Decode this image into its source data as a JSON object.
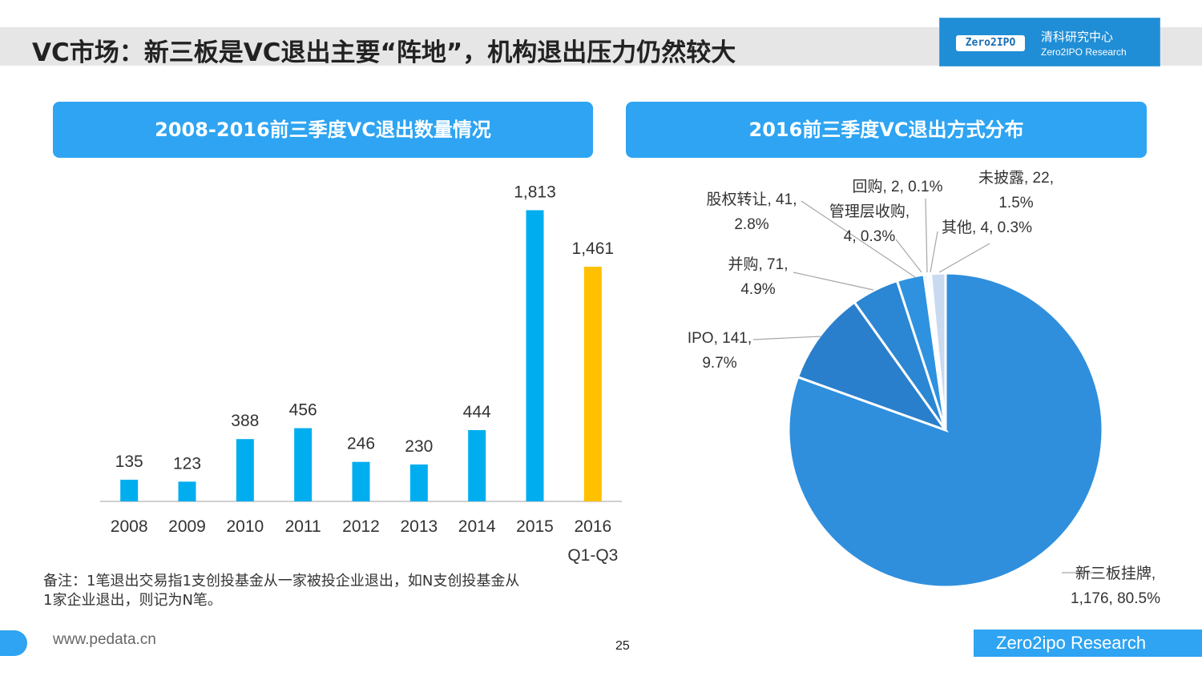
{
  "title": "VC市场：新三板是VC退出主要“阵地”，机构退出压力仍然较大",
  "logo": {
    "mark": "Zero2IPO",
    "cn": "清科研究中心",
    "en": "Zero2IPO Research"
  },
  "left_panel": {
    "header": "2008-2016前三季度VC退出数量情况"
  },
  "right_panel": {
    "header": "2016前三季度VC退出方式分布"
  },
  "note": {
    "line1": "备注：1笔退出交易指1支创投基金从一家被投企业退出，如N支创投基金从",
    "line2": "1家企业退出，则记为N笔。"
  },
  "footer": {
    "url": "www.pedata.cn",
    "page": "25",
    "brand": "Zero2ipo Research"
  },
  "colors": {
    "bar": "#00aeef",
    "bar_highlight": "#ffc000",
    "header": "#2ea4f2"
  },
  "chart_data": [
    {
      "type": "bar",
      "title": "2008-2016前三季度VC退出数量情况",
      "categories": [
        "2008",
        "2009",
        "2010",
        "2011",
        "2012",
        "2013",
        "2014",
        "2015",
        "2016"
      ],
      "category_sublabels": [
        "",
        "",
        "",
        "",
        "",
        "",
        "",
        "",
        "Q1-Q3"
      ],
      "values": [
        135,
        123,
        388,
        456,
        246,
        230,
        444,
        1813,
        1461
      ],
      "value_labels": [
        "135",
        "123",
        "388",
        "456",
        "246",
        "230",
        "444",
        "1,813",
        "1,461"
      ],
      "highlight_index": 8,
      "ylim": [
        0,
        1900
      ],
      "grid": false
    },
    {
      "type": "pie",
      "title": "2016前三季度VC退出方式分布",
      "slices": [
        {
          "name": "新三板挂牌",
          "value": 1176,
          "percent": "80.5%",
          "label_lines": [
            "新三板挂牌,",
            "1,176, 80.5%"
          ],
          "color": "#2f8fdd"
        },
        {
          "name": "IPO",
          "value": 141,
          "percent": "9.7%",
          "label_lines": [
            "IPO, 141,",
            "9.7%"
          ],
          "color": "#2a7fcc"
        },
        {
          "name": "并购",
          "value": 71,
          "percent": "4.9%",
          "label_lines": [
            "并购, 71,",
            "4.9%"
          ],
          "color": "#2b86d3"
        },
        {
          "name": "股权转让",
          "value": 41,
          "percent": "2.8%",
          "label_lines": [
            "股权转让, 41,",
            "2.8%"
          ],
          "color": "#2e92e0"
        },
        {
          "name": "管理层收购",
          "value": 4,
          "percent": "0.3%",
          "label_lines": [
            "管理层收购,",
            "4, 0.3%"
          ],
          "color": "#5aaeea"
        },
        {
          "name": "回购",
          "value": 2,
          "percent": "0.1%",
          "label_lines": [
            "回购, 2, 0.1%"
          ],
          "color": "#8cc6f0"
        },
        {
          "name": "其他",
          "value": 4,
          "percent": "0.3%",
          "label_lines": [
            "其他, 4, 0.3%"
          ],
          "color": "#a9d3f3"
        },
        {
          "name": "未披露",
          "value": 22,
          "percent": "1.5%",
          "label_lines": [
            "未披露, 22,",
            "1.5%"
          ],
          "color": "#c9daf0"
        }
      ]
    }
  ]
}
